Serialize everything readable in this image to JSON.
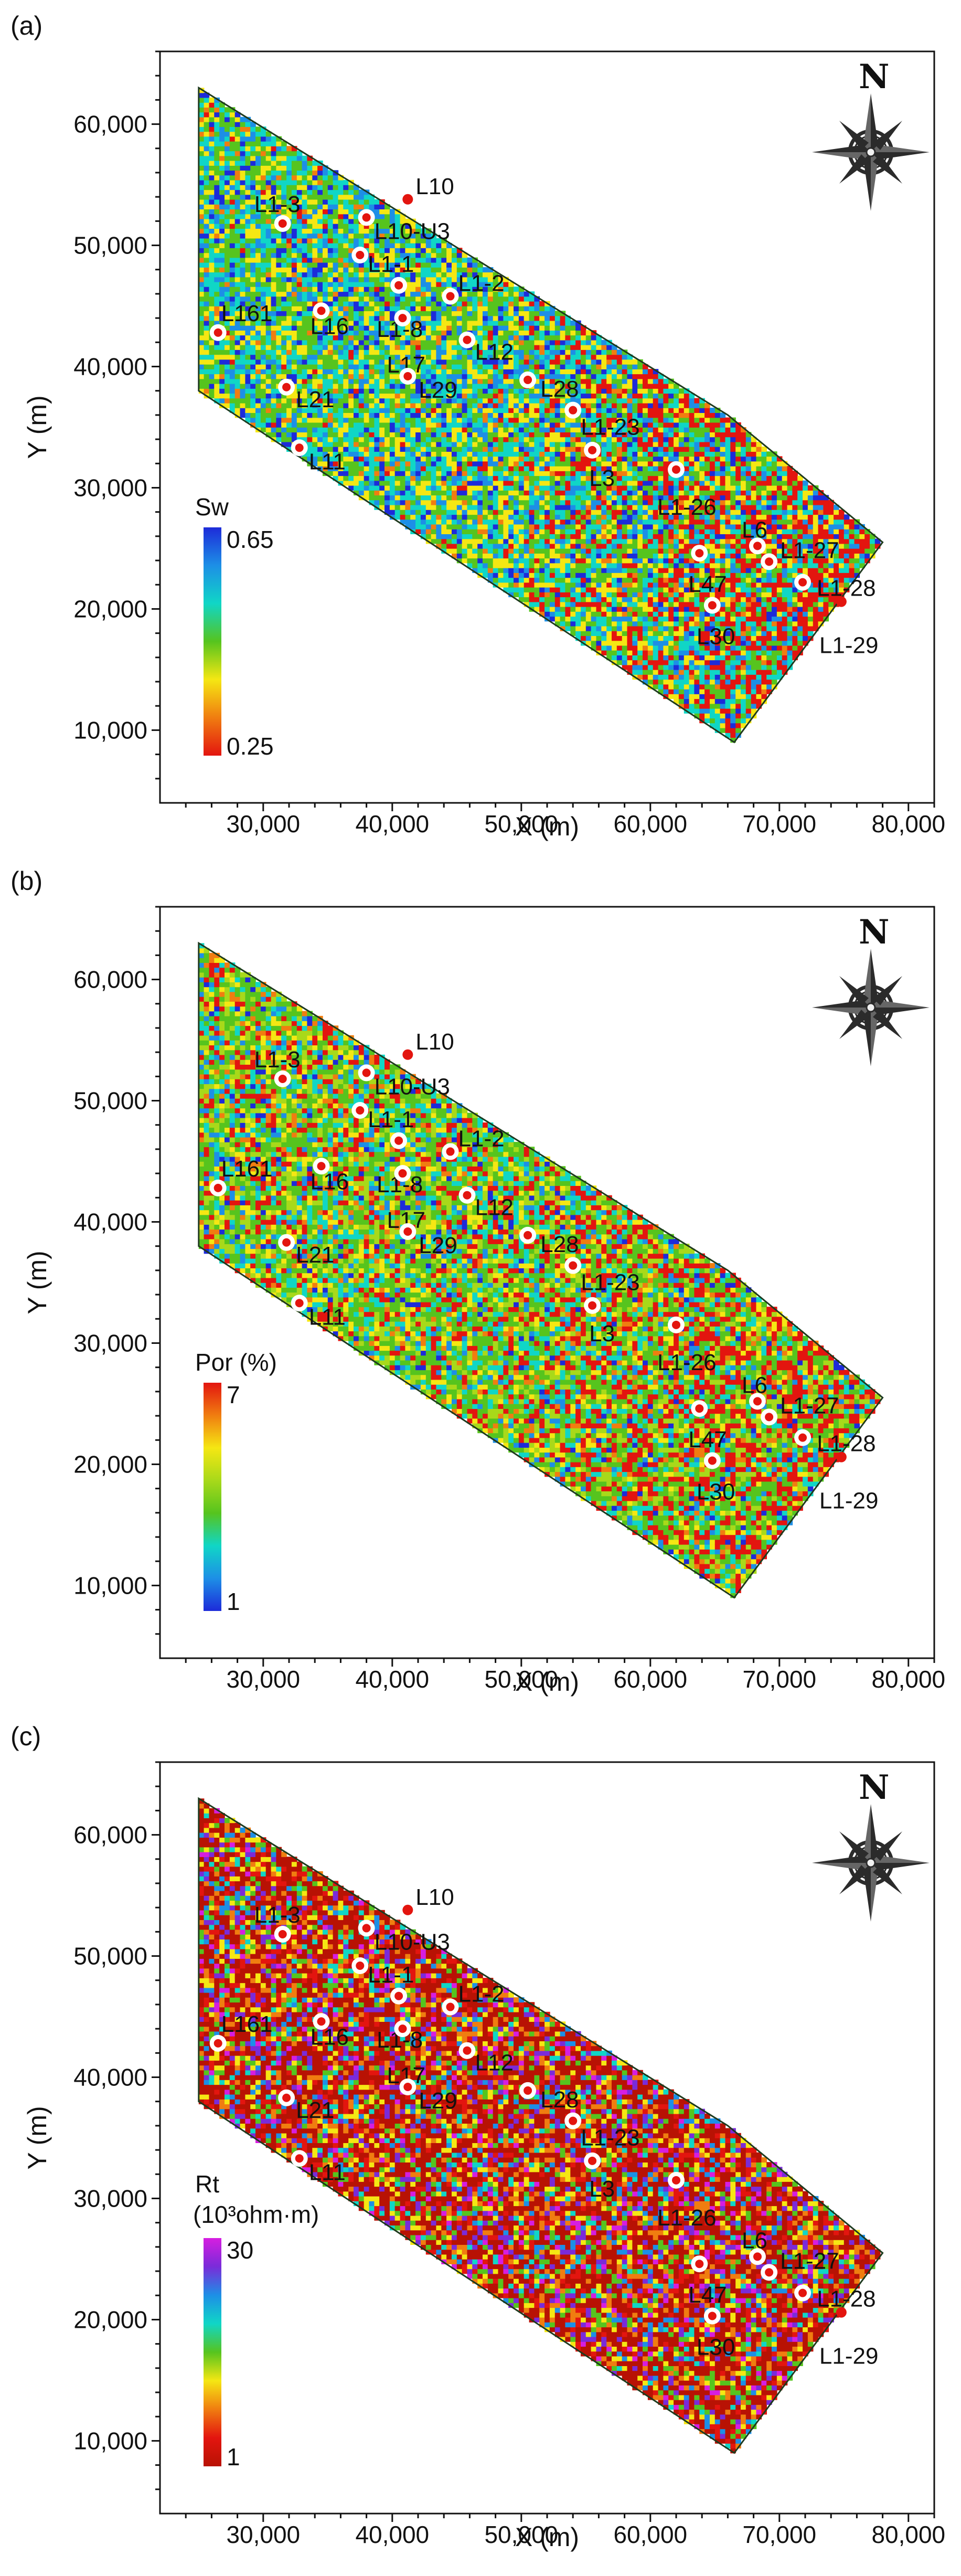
{
  "chart_data": [
    {
      "type": "heatmap",
      "panel_label": "(a)",
      "xlabel": "X (m)",
      "ylabel": "Y (m)",
      "xlim": [
        22000,
        82000
      ],
      "ylim": [
        4000,
        66000
      ],
      "x_ticks": [
        30000,
        40000,
        50000,
        60000,
        70000,
        80000
      ],
      "x_tick_labels": [
        "30,000",
        "40,000",
        "50,000",
        "60,000",
        "70,000",
        "80,000"
      ],
      "y_ticks": [
        10000,
        20000,
        30000,
        40000,
        50000,
        60000
      ],
      "y_tick_labels": [
        "10,000",
        "20,000",
        "30,000",
        "40,000",
        "50,000",
        "60,000"
      ],
      "colorbar": {
        "title": "Sw",
        "subtitle": "",
        "max_label": "0.65",
        "min_label": "0.25",
        "min": 0.25,
        "max": 0.65,
        "colors": [
          "#e3150f",
          "#f07d10",
          "#f5e713",
          "#56c41e",
          "#10d6c6",
          "#1d8fe6",
          "#1d2bd9"
        ]
      },
      "north_label": "N",
      "palette_weights": [
        2,
        4,
        20,
        25,
        22,
        14,
        8
      ],
      "red_bias": 1.0,
      "seed": 11
    },
    {
      "type": "heatmap",
      "panel_label": "(b)",
      "xlabel": "X (m)",
      "ylabel": "Y (m)",
      "xlim": [
        22000,
        82000
      ],
      "ylim": [
        4000,
        66000
      ],
      "x_ticks": [
        30000,
        40000,
        50000,
        60000,
        70000,
        80000
      ],
      "x_tick_labels": [
        "30,000",
        "40,000",
        "50,000",
        "60,000",
        "70,000",
        "80,000"
      ],
      "y_ticks": [
        10000,
        20000,
        30000,
        40000,
        50000,
        60000
      ],
      "y_tick_labels": [
        "10,000",
        "20,000",
        "30,000",
        "40,000",
        "50,000",
        "60,000"
      ],
      "colorbar": {
        "title": "Por (%)",
        "subtitle": "",
        "max_label": "7",
        "min_label": "1",
        "min": 1,
        "max": 7,
        "colors": [
          "#1d2bd9",
          "#1d8fe6",
          "#10d6c6",
          "#56c41e",
          "#a8d91a",
          "#f5e713",
          "#f07d10",
          "#e3150f"
        ]
      },
      "north_label": "N",
      "palette_weights": [
        3,
        6,
        14,
        28,
        18,
        10,
        6,
        15
      ],
      "red_bias": 0.6,
      "seed": 23
    },
    {
      "type": "heatmap",
      "panel_label": "(c)",
      "xlabel": "X (m)",
      "ylabel": "Y (m)",
      "xlim": [
        22000,
        82000
      ],
      "ylim": [
        4000,
        66000
      ],
      "x_ticks": [
        30000,
        40000,
        50000,
        60000,
        70000,
        80000
      ],
      "x_tick_labels": [
        "30,000",
        "40,000",
        "50,000",
        "60,000",
        "70,000",
        "80,000"
      ],
      "y_ticks": [
        10000,
        20000,
        30000,
        40000,
        50000,
        60000
      ],
      "y_tick_labels": [
        "10,000",
        "20,000",
        "30,000",
        "40,000",
        "50,000",
        "60,000"
      ],
      "colorbar": {
        "title": "Rt",
        "subtitle": "(10³ohm·m)",
        "max_label": "30",
        "min_label": "1",
        "min": 1,
        "max": 30,
        "colors": [
          "#b81204",
          "#e3150f",
          "#f07d10",
          "#f5e713",
          "#56c41e",
          "#10d6c6",
          "#1d8fe6",
          "#7a2bd9",
          "#d61ee0"
        ]
      },
      "north_label": "N",
      "palette_weights": [
        40,
        10,
        10,
        9,
        8,
        5,
        5,
        9,
        4
      ],
      "red_bias": 0.0,
      "seed": 37
    }
  ],
  "survey_polygon": [
    [
      25000,
      63000
    ],
    [
      66000,
      36000
    ],
    [
      78000,
      25500
    ],
    [
      66500,
      9000
    ],
    [
      25000,
      38000
    ]
  ],
  "wells": [
    {
      "name": "L10",
      "x": 41200,
      "y": 53800,
      "marker": "dot",
      "label_dx": 0.25,
      "label_dy": -0.4
    },
    {
      "name": "L10-U3",
      "x": 38000,
      "y": 52300,
      "marker": "ring",
      "label_dx": 0.25,
      "label_dy": 0.45
    },
    {
      "name": "L1-3",
      "x": 31500,
      "y": 51800,
      "marker": "ring",
      "label_dx": -0.9,
      "label_dy": -0.6
    },
    {
      "name": "L1-1",
      "x": 37500,
      "y": 49200,
      "marker": "ring",
      "label_dx": 0.25,
      "label_dy": 0.3
    },
    {
      "name": "L1-2",
      "x": 44500,
      "y": 45800,
      "marker": "ring",
      "label_dx": 0.25,
      "label_dy": -0.4
    },
    {
      "name": "L1-8",
      "x": 40500,
      "y": 46700,
      "marker": "ring",
      "label_dx": -0.7,
      "label_dy": 1.4
    },
    {
      "name": "L161",
      "x": 26500,
      "y": 42800,
      "marker": "ring",
      "label_dx": 0.1,
      "label_dy": -0.6
    },
    {
      "name": "L16",
      "x": 34500,
      "y": 44600,
      "marker": "ring",
      "label_dx": -0.35,
      "label_dy": 0.5
    },
    {
      "name": "L17",
      "x": 40800,
      "y": 44000,
      "marker": "ring",
      "label_dx": -0.5,
      "label_dy": 1.5
    },
    {
      "name": "L12",
      "x": 45800,
      "y": 42200,
      "marker": "ring",
      "label_dx": 0.25,
      "label_dy": 0.4
    },
    {
      "name": "L21",
      "x": 31800,
      "y": 38300,
      "marker": "ring",
      "label_dx": 0.3,
      "label_dy": 0.4
    },
    {
      "name": "L29",
      "x": 41200,
      "y": 39200,
      "marker": "ring",
      "label_dx": 0.35,
      "label_dy": 0.45
    },
    {
      "name": "L28",
      "x": 50500,
      "y": 38900,
      "marker": "ring",
      "label_dx": 0.4,
      "label_dy": 0.3
    },
    {
      "name": "L1-23",
      "x": 54000,
      "y": 36400,
      "marker": "ring",
      "label_dx": 0.25,
      "label_dy": 0.55
    },
    {
      "name": "L11",
      "x": 32800,
      "y": 33300,
      "marker": "ring",
      "label_dx": 0.3,
      "label_dy": 0.45
    },
    {
      "name": "L3",
      "x": 55500,
      "y": 33100,
      "marker": "ring",
      "label_dx": -0.1,
      "label_dy": 0.9
    },
    {
      "name": "L1-26",
      "x": 62000,
      "y": 31500,
      "marker": "ring",
      "label_dx": -0.6,
      "label_dy": 1.2
    },
    {
      "name": "L6",
      "x": 68300,
      "y": 25200,
      "marker": "ring",
      "label_dx": -0.5,
      "label_dy": -0.5
    },
    {
      "name": "L1-27",
      "x": 69200,
      "y": 23900,
      "marker": "ring",
      "label_dx": 0.35,
      "label_dy": -0.35
    },
    {
      "name": "L47",
      "x": 63800,
      "y": 24600,
      "marker": "ring",
      "label_dx": -0.35,
      "label_dy": 1.0
    },
    {
      "name": "L1-28",
      "x": 71800,
      "y": 22200,
      "marker": "ring",
      "label_dx": 0.45,
      "label_dy": 0.2
    },
    {
      "name": "L30",
      "x": 64800,
      "y": 20300,
      "marker": "ring",
      "label_dx": -0.5,
      "label_dy": 1.0
    },
    {
      "name": "L1-29",
      "x": 74800,
      "y": 20600,
      "marker": "dot",
      "label_dx": -0.7,
      "label_dy": 1.4
    }
  ]
}
